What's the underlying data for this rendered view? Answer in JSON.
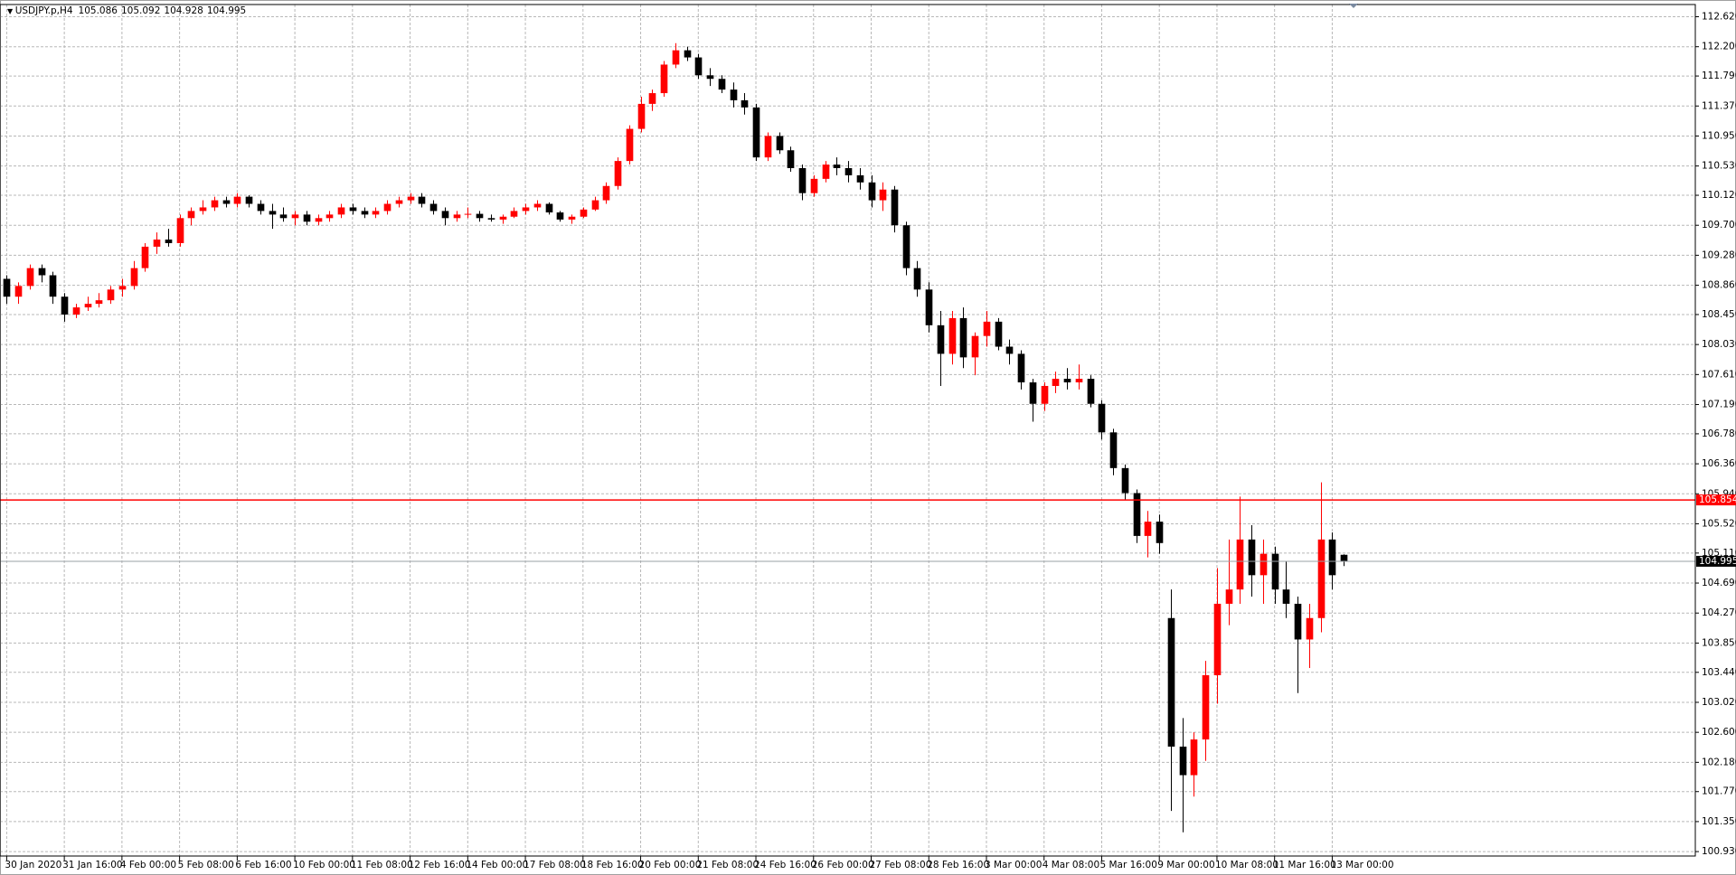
{
  "chart_data": {
    "type": "candlestick",
    "symbol": "USDJPY.p,H4",
    "colors": {
      "up": "#ff0000",
      "down": "#000000"
    },
    "grid": true,
    "ylim": [
      100.868,
      112.791
    ],
    "xlim": [
      -0.58,
      146.5
    ],
    "yticks": [
      {
        "value": 112.62,
        "label": "112.620"
      },
      {
        "value": 112.2,
        "label": "112.200"
      },
      {
        "value": 111.79,
        "label": "111.790"
      },
      {
        "value": 111.37,
        "label": "111.370"
      },
      {
        "value": 110.95,
        "label": "110.950"
      },
      {
        "value": 110.53,
        "label": "110.530"
      },
      {
        "value": 110.12,
        "label": "110.120"
      },
      {
        "value": 109.7,
        "label": "109.700"
      },
      {
        "value": 109.28,
        "label": "109.280"
      },
      {
        "value": 108.86,
        "label": "108.860"
      },
      {
        "value": 108.45,
        "label": "108.450"
      },
      {
        "value": 108.03,
        "label": "108.030"
      },
      {
        "value": 107.61,
        "label": "107.610"
      },
      {
        "value": 107.19,
        "label": "107.190"
      },
      {
        "value": 106.78,
        "label": "106.780"
      },
      {
        "value": 106.36,
        "label": "106.360"
      },
      {
        "value": 105.94,
        "label": "105.940"
      },
      {
        "value": 105.52,
        "label": "105.520"
      },
      {
        "value": 105.11,
        "label": "105.110"
      },
      {
        "value": 104.69,
        "label": "104.690"
      },
      {
        "value": 104.27,
        "label": "104.270"
      },
      {
        "value": 103.85,
        "label": "103.850"
      },
      {
        "value": 103.44,
        "label": "103.440"
      },
      {
        "value": 103.02,
        "label": "103.020"
      },
      {
        "value": 102.6,
        "label": "102.600"
      },
      {
        "value": 102.18,
        "label": "102.180"
      },
      {
        "value": 101.77,
        "label": "101.770"
      },
      {
        "value": 101.35,
        "label": "101.350"
      },
      {
        "value": 100.93,
        "label": "100.930"
      }
    ],
    "xticks": [
      {
        "value": 0,
        "label": "30 Jan 2020"
      },
      {
        "value": 5,
        "label": "31 Jan 16:00"
      },
      {
        "value": 10,
        "label": "4 Feb 00:00"
      },
      {
        "value": 15,
        "label": "5 Feb 08:00"
      },
      {
        "value": 20,
        "label": "6 Feb 16:00"
      },
      {
        "value": 25,
        "label": "10 Feb 00:00"
      },
      {
        "value": 30,
        "label": "11 Feb 08:00"
      },
      {
        "value": 35,
        "label": "12 Feb 16:00"
      },
      {
        "value": 40,
        "label": "14 Feb 00:00"
      },
      {
        "value": 45,
        "label": "17 Feb 08:00"
      },
      {
        "value": 50,
        "label": "18 Feb 16:00"
      },
      {
        "value": 55,
        "label": "20 Feb 00:00"
      },
      {
        "value": 60,
        "label": "21 Feb 08:00"
      },
      {
        "value": 65,
        "label": "24 Feb 16:00"
      },
      {
        "value": 70,
        "label": "26 Feb 00:00"
      },
      {
        "value": 75,
        "label": "27 Feb 08:00"
      },
      {
        "value": 80,
        "label": "28 Feb 16:00"
      },
      {
        "value": 85,
        "label": "3 Mar 00:00"
      },
      {
        "value": 90,
        "label": "4 Mar 08:00"
      },
      {
        "value": 95,
        "label": "5 Mar 16:00"
      },
      {
        "value": 100,
        "label": "9 Mar 00:00"
      },
      {
        "value": 105,
        "label": "10 Mar 08:00"
      },
      {
        "value": 110,
        "label": "11 Mar 16:00"
      },
      {
        "value": 115,
        "label": "13 Mar 00:00"
      }
    ],
    "level_line": {
      "value": 105.854,
      "color": "#ff0000"
    },
    "ohlc": [
      [
        108.95,
        109.0,
        108.6,
        108.7
      ],
      [
        108.7,
        108.9,
        108.6,
        108.85
      ],
      [
        108.85,
        109.15,
        108.8,
        109.1
      ],
      [
        109.1,
        109.15,
        108.9,
        109.0
      ],
      [
        109.0,
        109.05,
        108.6,
        108.7
      ],
      [
        108.7,
        108.75,
        108.35,
        108.45
      ],
      [
        108.45,
        108.6,
        108.4,
        108.55
      ],
      [
        108.55,
        108.7,
        108.5,
        108.6
      ],
      [
        108.6,
        108.75,
        108.55,
        108.65
      ],
      [
        108.65,
        108.85,
        108.6,
        108.8
      ],
      [
        108.8,
        108.95,
        108.7,
        108.85
      ],
      [
        108.85,
        109.2,
        108.8,
        109.1
      ],
      [
        109.1,
        109.45,
        109.05,
        109.4
      ],
      [
        109.4,
        109.6,
        109.3,
        109.5
      ],
      [
        109.5,
        109.65,
        109.4,
        109.45
      ],
      [
        109.45,
        109.85,
        109.4,
        109.8
      ],
      [
        109.8,
        109.95,
        109.7,
        109.9
      ],
      [
        109.9,
        110.05,
        109.85,
        109.95
      ],
      [
        109.95,
        110.1,
        109.9,
        110.05
      ],
      [
        110.05,
        110.1,
        109.95,
        110.0
      ],
      [
        110.0,
        110.15,
        109.95,
        110.1
      ],
      [
        110.1,
        110.12,
        109.95,
        110.0
      ],
      [
        110.0,
        110.05,
        109.85,
        109.9
      ],
      [
        109.9,
        110.0,
        109.65,
        109.85
      ],
      [
        109.85,
        109.95,
        109.75,
        109.8
      ],
      [
        109.8,
        109.9,
        109.7,
        109.85
      ],
      [
        109.85,
        109.9,
        109.7,
        109.75
      ],
      [
        109.75,
        109.85,
        109.7,
        109.8
      ],
      [
        109.8,
        109.9,
        109.75,
        109.85
      ],
      [
        109.85,
        110.0,
        109.8,
        109.95
      ],
      [
        109.95,
        110.0,
        109.85,
        109.9
      ],
      [
        109.9,
        109.95,
        109.8,
        109.85
      ],
      [
        109.85,
        109.95,
        109.8,
        109.9
      ],
      [
        109.9,
        110.05,
        109.85,
        110.0
      ],
      [
        110.0,
        110.1,
        109.95,
        110.05
      ],
      [
        110.05,
        110.15,
        110.0,
        110.1
      ],
      [
        110.1,
        110.15,
        109.95,
        110.0
      ],
      [
        110.0,
        110.05,
        109.85,
        109.9
      ],
      [
        109.9,
        109.95,
        109.7,
        109.8
      ],
      [
        109.8,
        109.9,
        109.75,
        109.85
      ],
      [
        109.85,
        109.95,
        109.8,
        109.86
      ],
      [
        109.86,
        109.9,
        109.75,
        109.8
      ],
      [
        109.8,
        109.85,
        109.75,
        109.78
      ],
      [
        109.78,
        109.85,
        109.72,
        109.82
      ],
      [
        109.82,
        109.95,
        109.8,
        109.9
      ],
      [
        109.9,
        110.0,
        109.85,
        109.95
      ],
      [
        109.95,
        110.05,
        109.9,
        110.0
      ],
      [
        110.0,
        110.02,
        109.85,
        109.88
      ],
      [
        109.88,
        109.9,
        109.75,
        109.78
      ],
      [
        109.78,
        109.85,
        109.72,
        109.82
      ],
      [
        109.82,
        109.95,
        109.8,
        109.92
      ],
      [
        109.92,
        110.1,
        109.9,
        110.05
      ],
      [
        110.05,
        110.3,
        110.0,
        110.25
      ],
      [
        110.25,
        110.65,
        110.2,
        110.6
      ],
      [
        110.6,
        111.1,
        110.55,
        111.05
      ],
      [
        111.05,
        111.5,
        111.0,
        111.4
      ],
      [
        111.4,
        111.6,
        111.3,
        111.55
      ],
      [
        111.55,
        112.0,
        111.5,
        111.95
      ],
      [
        111.95,
        112.25,
        111.9,
        112.15
      ],
      [
        112.15,
        112.2,
        112.0,
        112.05
      ],
      [
        112.05,
        112.1,
        111.75,
        111.8
      ],
      [
        111.8,
        111.9,
        111.65,
        111.75
      ],
      [
        111.75,
        111.8,
        111.55,
        111.6
      ],
      [
        111.6,
        111.7,
        111.35,
        111.45
      ],
      [
        111.45,
        111.55,
        111.25,
        111.35
      ],
      [
        111.35,
        111.4,
        110.6,
        110.65
      ],
      [
        110.65,
        111.0,
        110.6,
        110.95
      ],
      [
        110.95,
        111.0,
        110.7,
        110.75
      ],
      [
        110.75,
        110.8,
        110.45,
        110.5
      ],
      [
        110.5,
        110.55,
        110.05,
        110.15
      ],
      [
        110.15,
        110.4,
        110.1,
        110.35
      ],
      [
        110.35,
        110.6,
        110.3,
        110.55
      ],
      [
        110.55,
        110.65,
        110.4,
        110.5
      ],
      [
        110.5,
        110.6,
        110.3,
        110.4
      ],
      [
        110.4,
        110.5,
        110.2,
        110.3
      ],
      [
        110.3,
        110.4,
        109.95,
        110.05
      ],
      [
        110.05,
        110.3,
        109.9,
        110.2
      ],
      [
        110.2,
        110.25,
        109.6,
        109.7
      ],
      [
        109.7,
        109.75,
        109.0,
        109.1
      ],
      [
        109.1,
        109.2,
        108.7,
        108.8
      ],
      [
        108.8,
        108.9,
        108.2,
        108.3
      ],
      [
        108.3,
        108.5,
        107.45,
        107.9
      ],
      [
        107.9,
        108.5,
        107.75,
        108.4
      ],
      [
        108.4,
        108.55,
        107.7,
        107.85
      ],
      [
        107.85,
        108.2,
        107.6,
        108.15
      ],
      [
        108.15,
        108.5,
        108.0,
        108.35
      ],
      [
        108.35,
        108.4,
        107.95,
        108.0
      ],
      [
        108.0,
        108.1,
        107.75,
        107.9
      ],
      [
        107.9,
        107.95,
        107.4,
        107.5
      ],
      [
        107.5,
        107.55,
        106.95,
        107.2
      ],
      [
        107.2,
        107.5,
        107.1,
        107.45
      ],
      [
        107.45,
        107.65,
        107.35,
        107.55
      ],
      [
        107.55,
        107.7,
        107.4,
        107.5
      ],
      [
        107.5,
        107.75,
        107.4,
        107.55
      ],
      [
        107.55,
        107.6,
        107.15,
        107.2
      ],
      [
        107.2,
        107.25,
        106.7,
        106.8
      ],
      [
        106.8,
        106.85,
        106.2,
        106.3
      ],
      [
        106.3,
        106.35,
        105.85,
        105.95
      ],
      [
        105.95,
        106.0,
        105.25,
        105.35
      ],
      [
        105.35,
        105.7,
        105.05,
        105.55
      ],
      [
        105.55,
        105.65,
        105.1,
        105.25
      ],
      [
        104.2,
        104.6,
        101.5,
        102.4
      ],
      [
        102.4,
        102.8,
        101.2,
        102.0
      ],
      [
        102.0,
        102.6,
        101.7,
        102.5
      ],
      [
        102.5,
        103.6,
        102.2,
        103.4
      ],
      [
        103.4,
        104.9,
        103.0,
        104.4
      ],
      [
        104.4,
        105.3,
        104.1,
        104.6
      ],
      [
        104.6,
        105.9,
        104.4,
        105.3
      ],
      [
        105.3,
        105.5,
        104.5,
        104.8
      ],
      [
        104.8,
        105.3,
        104.4,
        105.1
      ],
      [
        105.1,
        105.2,
        104.4,
        104.6
      ],
      [
        104.6,
        105.0,
        104.2,
        104.4
      ],
      [
        104.4,
        104.5,
        103.15,
        103.9
      ],
      [
        103.9,
        104.4,
        103.5,
        104.2
      ],
      [
        104.2,
        106.1,
        104.0,
        105.3
      ],
      [
        105.3,
        105.4,
        104.6,
        104.8
      ],
      [
        105.086,
        105.092,
        104.928,
        104.995
      ]
    ]
  }
}
